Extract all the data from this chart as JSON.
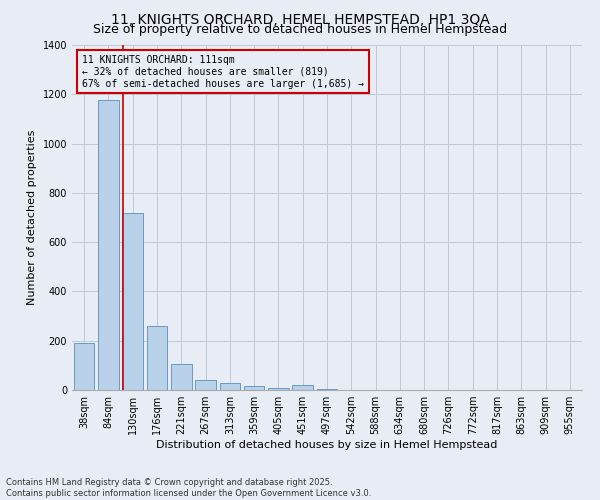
{
  "title_line1": "11, KNIGHTS ORCHARD, HEMEL HEMPSTEAD, HP1 3QA",
  "title_line2": "Size of property relative to detached houses in Hemel Hempstead",
  "xlabel": "Distribution of detached houses by size in Hemel Hempstead",
  "ylabel": "Number of detached properties",
  "categories": [
    "38sqm",
    "84sqm",
    "130sqm",
    "176sqm",
    "221sqm",
    "267sqm",
    "313sqm",
    "359sqm",
    "405sqm",
    "451sqm",
    "497sqm",
    "542sqm",
    "588sqm",
    "634sqm",
    "680sqm",
    "726sqm",
    "772sqm",
    "817sqm",
    "863sqm",
    "909sqm",
    "955sqm"
  ],
  "values": [
    190,
    1175,
    720,
    260,
    105,
    40,
    30,
    18,
    7,
    20,
    5,
    2,
    0,
    0,
    0,
    0,
    0,
    0,
    0,
    0,
    0
  ],
  "bar_color": "#b8d0e8",
  "bar_edge_color": "#5a8fc0",
  "grid_color": "#c0c8d8",
  "background_color": "#e8edf5",
  "vline_color": "#cc0000",
  "annotation_text": "11 KNIGHTS ORCHARD: 111sqm\n← 32% of detached houses are smaller (819)\n67% of semi-detached houses are larger (1,685) →",
  "annotation_box_color": "#cc0000",
  "ylim": [
    0,
    1400
  ],
  "yticks": [
    0,
    200,
    400,
    600,
    800,
    1000,
    1200,
    1400
  ],
  "footer_line1": "Contains HM Land Registry data © Crown copyright and database right 2025.",
  "footer_line2": "Contains public sector information licensed under the Open Government Licence v3.0.",
  "title_fontsize": 10,
  "subtitle_fontsize": 9,
  "axis_fontsize": 8,
  "tick_fontsize": 7,
  "footer_fontsize": 6
}
